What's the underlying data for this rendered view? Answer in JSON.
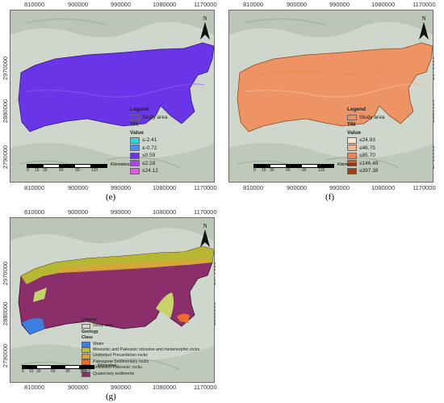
{
  "panels": {
    "e": {
      "caption": "(e)",
      "x_ticks": [
        "810000",
        "900000",
        "990000",
        "1080000",
        "1170000"
      ],
      "y_ticks": [
        "2970000",
        "2880000",
        "2790000"
      ],
      "legend_title": "Legend",
      "study_area": "Study area",
      "index_name": "TPI",
      "value_label": "Value",
      "classes": [
        {
          "label": "≤-2.41",
          "color": "#33d6e0"
        },
        {
          "label": "≤-0.72",
          "color": "#4d8ff0"
        },
        {
          "label": "≤0.59",
          "color": "#6a35e6"
        },
        {
          "label": "≤2.28",
          "color": "#b043e8"
        },
        {
          "label": "≤24.12",
          "color": "#e35ae8"
        }
      ],
      "fill_color": "#6a35e6",
      "scale_labels": [
        "0",
        "15",
        "30",
        "60",
        "90",
        "120"
      ],
      "scale_unit": "Kilometers",
      "north": "N"
    },
    "f": {
      "caption": "(f)",
      "x_ticks": [
        "810000",
        "900000",
        "990000",
        "1080000",
        "1170000"
      ],
      "y_ticks": [
        "2970000",
        "2880000",
        "2790000"
      ],
      "legend_title": "Legend",
      "study_area": "Study area",
      "index_name": "TRI",
      "value_label": "Value",
      "classes": [
        {
          "label": "≤24.93",
          "color": "#fbe2d0"
        },
        {
          "label": "≤46.75",
          "color": "#f7b58e"
        },
        {
          "label": "≤85.70",
          "color": "#f0844d"
        },
        {
          "label": "≤146.48",
          "color": "#d95a1e"
        },
        {
          "label": "≤397.38",
          "color": "#a83c10"
        }
      ],
      "fill_color": "#ee9363",
      "scale_labels": [
        "0",
        "15",
        "30",
        "60",
        "90",
        "120"
      ],
      "scale_unit": "Kilometers",
      "north": "N"
    },
    "g": {
      "caption": "(g)",
      "x_ticks": [
        "810000",
        "900000",
        "990000",
        "1080000",
        "1170000"
      ],
      "y_ticks": [
        "2970000",
        "2880000",
        "2790000"
      ],
      "legend_title": "Legend",
      "study_area": "Study area",
      "index_name": "Geology",
      "value_label": "Class",
      "classes": [
        {
          "label": "Water",
          "color": "#3a7fe0"
        },
        {
          "label": "Mesozoic and Paleozoic intrusive and metamorphic rocks",
          "color": "#b8c030"
        },
        {
          "label": "Undivided Precambrian rocks",
          "color": "#d9a63a"
        },
        {
          "label": "Paleogene Sedimentary rocks",
          "color": "#f06a2a"
        },
        {
          "label": "Undivided Paleozoic rocks",
          "color": "#c8d26a"
        },
        {
          "label": "Quaternary sediments",
          "color": "#8a2f6a"
        }
      ],
      "fill_color": "#8a2f6a",
      "scale_labels": [
        "0",
        "15",
        "30",
        "60",
        "90",
        "120"
      ],
      "scale_unit": "Kilometers",
      "north": "N"
    }
  }
}
